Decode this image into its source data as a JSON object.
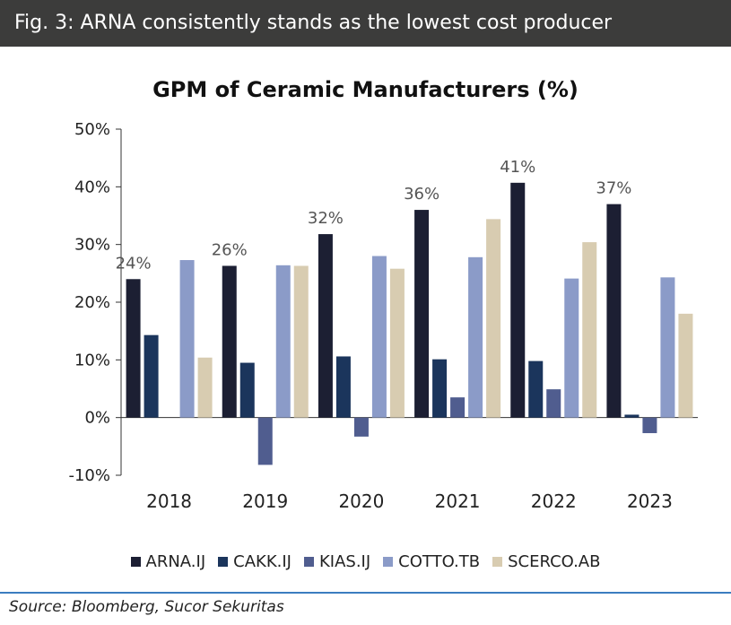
{
  "banner": {
    "text": "Fig. 3: ARNA consistently stands as the lowest cost producer"
  },
  "source": "Source: Bloomberg, Sucor Sekuritas",
  "chart_data": {
    "type": "bar",
    "title": "GPM of Ceramic Manufacturers (%)",
    "xlabel": "",
    "ylabel": "",
    "categories": [
      "2018",
      "2019",
      "2020",
      "2021",
      "2022",
      "2023"
    ],
    "ylim": [
      -10,
      50
    ],
    "yticks": [
      -10,
      0,
      10,
      20,
      30,
      40,
      50
    ],
    "ytick_labels": [
      "-10%",
      "0%",
      "10%",
      "20%",
      "30%",
      "40%",
      "50%"
    ],
    "grid": false,
    "legend_position": "bottom",
    "series": [
      {
        "name": "ARNA.IJ",
        "color": "#1c1f33",
        "values": [
          24,
          26.3,
          31.8,
          36,
          40.7,
          37
        ],
        "data_labels": [
          "24%",
          "26%",
          "32%",
          "36%",
          "41%",
          "37%"
        ]
      },
      {
        "name": "CAKK.IJ",
        "color": "#1b355c",
        "values": [
          14.3,
          9.5,
          10.6,
          10.1,
          9.8,
          0.5
        ]
      },
      {
        "name": "KIAS.IJ",
        "color": "#505d8f",
        "values": [
          null,
          -8.2,
          -3.3,
          3.5,
          4.9,
          -2.7
        ]
      },
      {
        "name": "COTTO.TB",
        "color": "#8b9bc8",
        "values": [
          27.3,
          26.4,
          28,
          27.8,
          24.1,
          24.3
        ]
      },
      {
        "name": "SCERCO.AB",
        "color": "#d8ccb1",
        "values": [
          10.4,
          26.3,
          25.8,
          34.4,
          30.4,
          18
        ]
      }
    ]
  }
}
